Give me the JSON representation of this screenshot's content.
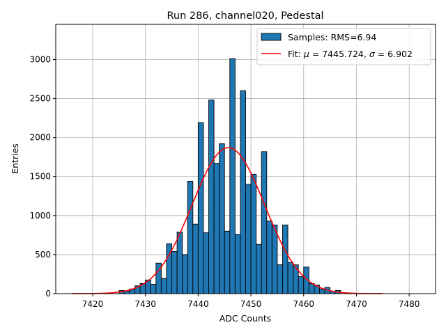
{
  "chart_data": {
    "type": "bar",
    "title": "Run 286, channel020, Pedestal",
    "xlabel": "ADC Counts",
    "ylabel": "Entries",
    "xlim": [
      7413,
      7485
    ],
    "ylim": [
      0,
      3450
    ],
    "grid": true,
    "legend_placement": "top-right",
    "x_ticks": [
      7420,
      7430,
      7440,
      7450,
      7460,
      7470,
      7480
    ],
    "y_ticks": [
      0,
      500,
      1000,
      1500,
      2000,
      2500,
      3000
    ],
    "histogram": {
      "name": "Samples: RMS=6.94",
      "color": "#1f77b4",
      "bin_start": 7416,
      "bin_width": 1,
      "values": [
        0,
        0,
        0,
        0,
        0,
        0,
        0,
        0,
        0,
        40,
        35,
        60,
        100,
        130,
        175,
        120,
        390,
        195,
        640,
        540,
        790,
        500,
        1440,
        890,
        2190,
        780,
        2480,
        1670,
        1920,
        800,
        3010,
        760,
        2600,
        1400,
        1530,
        630,
        1820,
        930,
        880,
        370,
        880,
        400,
        370,
        220,
        340,
        130,
        110,
        60,
        80,
        30,
        40,
        0,
        0,
        0,
        0,
        0,
        0,
        0,
        0,
        0,
        0,
        0,
        0,
        0,
        0
      ]
    },
    "fit": {
      "name_prefix": "Fit: ",
      "name_mu": "μ",
      "name_mid": " = 7445.724, ",
      "name_sigma": "σ",
      "name_suffix": " = 6.902",
      "color": "#ff0000",
      "mu": 7445.724,
      "sigma": 6.902,
      "amplitude": 1870,
      "x_range": [
        7416,
        7475
      ]
    }
  }
}
